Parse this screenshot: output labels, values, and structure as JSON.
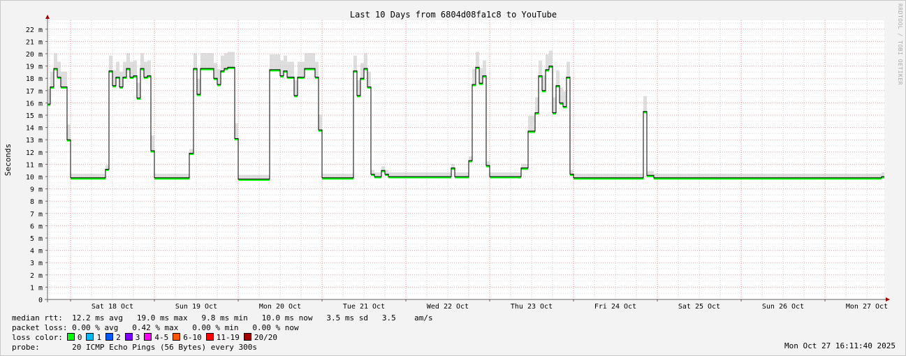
{
  "chart_data": {
    "type": "line",
    "title": "Last 10 Days from 6804d08fa1c8 to YouTube",
    "ylabel": "Seconds",
    "ylim": [
      0,
      23
    ],
    "yticks": [
      "0",
      "1 m",
      "2 m",
      "3 m",
      "4 m",
      "5 m",
      "6 m",
      "7 m",
      "8 m",
      "9 m",
      "10 m",
      "11 m",
      "12 m",
      "13 m",
      "14 m",
      "15 m",
      "16 m",
      "17 m",
      "18 m",
      "19 m",
      "20 m",
      "21 m",
      "22 m"
    ],
    "xrange": [
      "10-17 17:24",
      "10-27 16:12"
    ],
    "xticks": [
      {
        "label": "Sat 18 Oct",
        "t": "10-18 12:00"
      },
      {
        "label": "Sun 19 Oct",
        "t": "10-19 12:00"
      },
      {
        "label": "Mon 20 Oct",
        "t": "10-20 12:00"
      },
      {
        "label": "Tue 21 Oct",
        "t": "10-21 12:00"
      },
      {
        "label": "Wed 22 Oct",
        "t": "10-22 12:00"
      },
      {
        "label": "Thu 23 Oct",
        "t": "10-23 12:00"
      },
      {
        "label": "Fri 24 Oct",
        "t": "10-24 12:00"
      },
      {
        "label": "Sat 25 Oct",
        "t": "10-25 12:00"
      },
      {
        "label": "Sun 26 Oct",
        "t": "10-26 12:00"
      },
      {
        "label": "Mon 27 Oct",
        "t": "10-27 12:00"
      }
    ],
    "grid": true,
    "series": [
      {
        "color": "#00ff00",
        "step": true,
        "points": [
          [
            "10-17 17:24",
            15.9
          ],
          [
            "10-17 18:12",
            17.3
          ],
          [
            "10-17 19:12",
            18.8
          ],
          [
            "10-17 20:12",
            18.1
          ],
          [
            "10-17 21:12",
            17.3
          ],
          [
            "10-17 23:00",
            13.0
          ],
          [
            "10-18 00:00",
            9.9
          ],
          [
            "10-18 10:00",
            10.6
          ],
          [
            "10-18 11:00",
            18.6
          ],
          [
            "10-18 12:00",
            17.4
          ],
          [
            "10-18 13:00",
            18.1
          ],
          [
            "10-18 14:00",
            17.3
          ],
          [
            "10-18 15:00",
            18.1
          ],
          [
            "10-18 16:00",
            18.8
          ],
          [
            "10-18 17:00",
            18.1
          ],
          [
            "10-18 18:00",
            18.2
          ],
          [
            "10-18 19:00",
            16.4
          ],
          [
            "10-18 20:00",
            18.8
          ],
          [
            "10-18 21:00",
            18.1
          ],
          [
            "10-18 22:00",
            18.2
          ],
          [
            "10-18 23:00",
            12.1
          ],
          [
            "10-19 00:00",
            9.9
          ],
          [
            "10-19 10:00",
            11.9
          ],
          [
            "10-19 11:12",
            18.8
          ],
          [
            "10-19 12:12",
            16.7
          ],
          [
            "10-19 13:12",
            18.8
          ],
          [
            "10-19 17:00",
            18.0
          ],
          [
            "10-19 18:00",
            17.5
          ],
          [
            "10-19 19:00",
            18.6
          ],
          [
            "10-19 20:00",
            18.8
          ],
          [
            "10-19 21:00",
            18.9
          ],
          [
            "10-19 23:00",
            13.1
          ],
          [
            "10-20 00:00",
            9.8
          ],
          [
            "10-20 09:00",
            18.7
          ],
          [
            "10-20 12:00",
            18.2
          ],
          [
            "10-20 13:00",
            18.6
          ],
          [
            "10-20 14:00",
            18.1
          ],
          [
            "10-20 16:00",
            16.6
          ],
          [
            "10-20 17:00",
            18.1
          ],
          [
            "10-20 19:00",
            18.8
          ],
          [
            "10-20 22:00",
            18.1
          ],
          [
            "10-20 23:00",
            13.8
          ],
          [
            "10-21 00:00",
            9.9
          ],
          [
            "10-21 09:00",
            18.6
          ],
          [
            "10-21 10:00",
            16.6
          ],
          [
            "10-21 11:00",
            18.0
          ],
          [
            "10-21 12:00",
            18.8
          ],
          [
            "10-21 13:00",
            17.3
          ],
          [
            "10-21 14:00",
            10.2
          ],
          [
            "10-21 15:00",
            10.0
          ],
          [
            "10-21 17:00",
            10.5
          ],
          [
            "10-21 18:00",
            10.2
          ],
          [
            "10-21 19:00",
            10.0
          ],
          [
            "10-22 13:00",
            10.7
          ],
          [
            "10-22 14:00",
            10.0
          ],
          [
            "10-22 18:00",
            11.3
          ],
          [
            "10-22 19:00",
            17.5
          ],
          [
            "10-22 20:00",
            18.9
          ],
          [
            "10-22 21:00",
            17.6
          ],
          [
            "10-22 22:00",
            18.2
          ],
          [
            "10-22 23:00",
            10.9
          ],
          [
            "10-23 00:00",
            10.0
          ],
          [
            "10-23 09:00",
            10.7
          ],
          [
            "10-23 11:00",
            13.7
          ],
          [
            "10-23 13:00",
            15.2
          ],
          [
            "10-23 14:00",
            18.2
          ],
          [
            "10-23 15:00",
            17.0
          ],
          [
            "10-23 16:00",
            18.7
          ],
          [
            "10-23 17:00",
            19.0
          ],
          [
            "10-23 18:00",
            15.2
          ],
          [
            "10-23 19:00",
            17.4
          ],
          [
            "10-23 20:00",
            16.0
          ],
          [
            "10-23 21:00",
            15.7
          ],
          [
            "10-23 22:00",
            18.1
          ],
          [
            "10-23 23:00",
            10.2
          ],
          [
            "10-24 00:00",
            9.9
          ],
          [
            "10-24 20:00",
            15.3
          ],
          [
            "10-24 21:00",
            10.1
          ],
          [
            "10-24 23:00",
            9.9
          ],
          [
            "10-27 16:12",
            10.0
          ]
        ]
      }
    ]
  },
  "legend": {
    "median_rtt_label": "median rtt:",
    "median_rtt": "12.2 ms avg   19.0 ms max   9.8 ms min   10.0 ms now   3.5 ms sd   3.5    am/s",
    "packet_loss_label": "packet loss:",
    "packet_loss": "0.00 % avg   0.42 % max   0.00 % min   0.00 % now",
    "loss_color_label": "loss color:",
    "loss_colors": [
      {
        "label": "0",
        "color": "#00ff00"
      },
      {
        "label": "1",
        "color": "#00b8ff"
      },
      {
        "label": "2",
        "color": "#0059ff"
      },
      {
        "label": "3",
        "color": "#7e00ff"
      },
      {
        "label": "4-5",
        "color": "#ff00ff"
      },
      {
        "label": "6-10",
        "color": "#ff5500"
      },
      {
        "label": "11-19",
        "color": "#ff0000"
      },
      {
        "label": "20/20",
        "color": "#a10000"
      }
    ],
    "probe_label": "probe:",
    "probe": "20 ICMP Echo Pings (56 Bytes) every 300s",
    "timestamp": "Mon Oct 27 16:11:40 2025"
  },
  "watermark": "RRDTOOL / TOBI OETIKER"
}
